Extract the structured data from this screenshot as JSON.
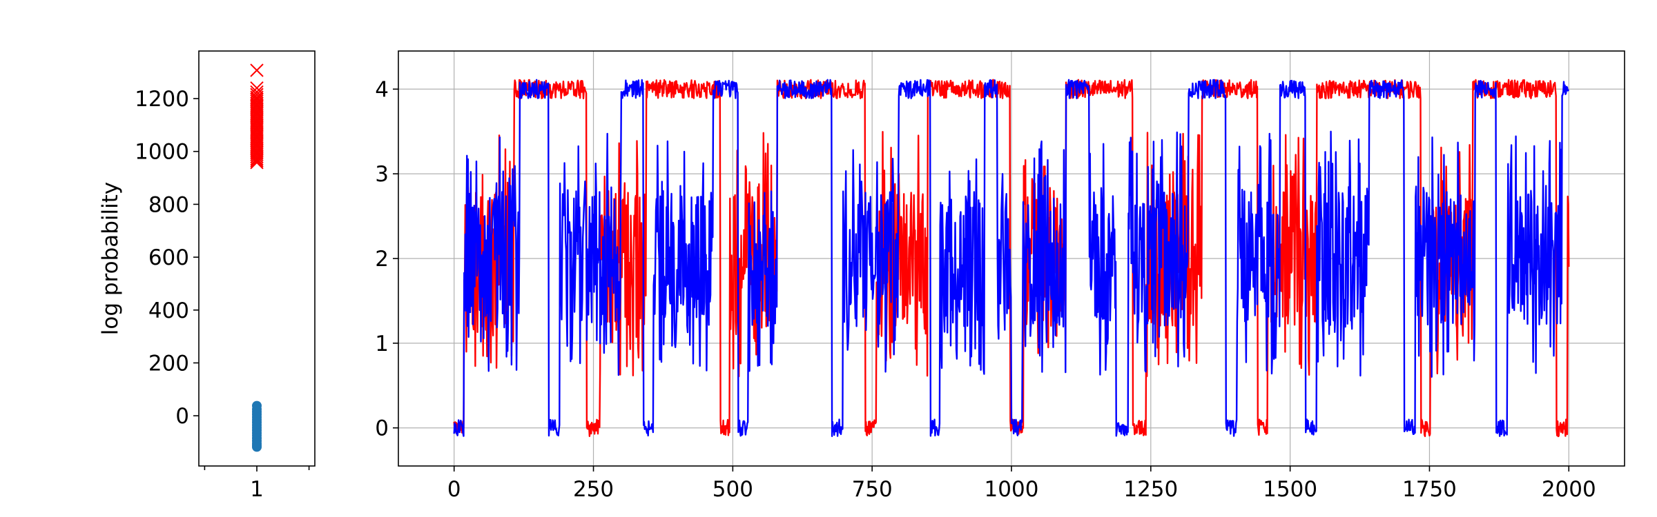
{
  "chart_data": [
    {
      "type": "scatter",
      "ylabel": "log probability",
      "xlabel": "",
      "title": "",
      "xlim": [
        0.5,
        1.5
      ],
      "ylim": [
        -190,
        1380
      ],
      "x_ticks": [
        1
      ],
      "x_tick_labels": [
        "1"
      ],
      "y_ticks": [
        0,
        200,
        400,
        600,
        800,
        1000,
        1200
      ],
      "y_tick_labels": [
        "0",
        "200",
        "400",
        "600",
        "800",
        "1000",
        "1200"
      ],
      "grid": false,
      "series": [
        {
          "marker": "x",
          "color": "#ff0000",
          "x": 1,
          "values": [
            1307,
            1240,
            1225,
            1215,
            1205,
            1198,
            1190,
            1182,
            1175,
            1168,
            1160,
            1152,
            1145,
            1138,
            1130,
            1122,
            1115,
            1108,
            1100,
            1092,
            1085,
            1078,
            1070,
            1062,
            1055,
            1048,
            1040,
            1032,
            1025,
            1018,
            1010,
            1002,
            995,
            988,
            980,
            972,
            965,
            958
          ]
        },
        {
          "marker": "o",
          "color": "#1f77b4",
          "x": 1,
          "values": [
            38,
            25,
            15,
            5,
            -5,
            -15,
            -25,
            -35,
            -45,
            -55,
            -65,
            -75,
            -85,
            -95,
            -105,
            -112,
            -118
          ]
        }
      ]
    },
    {
      "type": "line",
      "xlabel": "",
      "ylabel": "",
      "title": "",
      "xlim": [
        -100,
        2100
      ],
      "ylim": [
        -0.45,
        4.45
      ],
      "x_ticks": [
        0,
        250,
        500,
        750,
        1000,
        1250,
        1500,
        1750,
        2000
      ],
      "x_tick_labels": [
        "0",
        "250",
        "500",
        "750",
        "1000",
        "1250",
        "1500",
        "1750",
        "2000"
      ],
      "y_ticks": [
        0,
        1,
        2,
        3,
        4
      ],
      "y_tick_labels": [
        "0",
        "1",
        "2",
        "3",
        "4"
      ],
      "grid": true,
      "x_range": [
        0,
        2000
      ],
      "series": [
        {
          "color": "#ff0000",
          "segments": [
            {
              "start": 0,
              "end": 18,
              "level": 0
            },
            {
              "start": 18,
              "end": 108,
              "level": 2
            },
            {
              "start": 108,
              "end": 238,
              "level": 4
            },
            {
              "start": 238,
              "end": 262,
              "level": 0
            },
            {
              "start": 262,
              "end": 345,
              "level": 2
            },
            {
              "start": 345,
              "end": 478,
              "level": 4
            },
            {
              "start": 478,
              "end": 495,
              "level": 0
            },
            {
              "start": 495,
              "end": 580,
              "level": 2
            },
            {
              "start": 580,
              "end": 738,
              "level": 4
            },
            {
              "start": 738,
              "end": 758,
              "level": 0
            },
            {
              "start": 758,
              "end": 850,
              "level": 2
            },
            {
              "start": 850,
              "end": 998,
              "level": 4
            },
            {
              "start": 998,
              "end": 1022,
              "level": 0
            },
            {
              "start": 1022,
              "end": 1098,
              "level": 2
            },
            {
              "start": 1098,
              "end": 1218,
              "level": 4
            },
            {
              "start": 1218,
              "end": 1242,
              "level": 0
            },
            {
              "start": 1242,
              "end": 1342,
              "level": 2
            },
            {
              "start": 1342,
              "end": 1442,
              "level": 4
            },
            {
              "start": 1442,
              "end": 1460,
              "level": 0
            },
            {
              "start": 1460,
              "end": 1548,
              "level": 2
            },
            {
              "start": 1548,
              "end": 1735,
              "level": 4
            },
            {
              "start": 1735,
              "end": 1752,
              "level": 0
            },
            {
              "start": 1752,
              "end": 1828,
              "level": 2
            },
            {
              "start": 1828,
              "end": 1978,
              "level": 4
            },
            {
              "start": 1978,
              "end": 1998,
              "level": 0
            },
            {
              "start": 1998,
              "end": 2000,
              "level": 2
            }
          ]
        },
        {
          "color": "#0000ff",
          "segments": [
            {
              "start": 0,
              "end": 18,
              "level": 0
            },
            {
              "start": 18,
              "end": 118,
              "level": 2
            },
            {
              "start": 118,
              "end": 170,
              "level": 4
            },
            {
              "start": 170,
              "end": 190,
              "level": 0
            },
            {
              "start": 190,
              "end": 300,
              "level": 2
            },
            {
              "start": 300,
              "end": 340,
              "level": 4
            },
            {
              "start": 340,
              "end": 358,
              "level": 0
            },
            {
              "start": 358,
              "end": 465,
              "level": 2
            },
            {
              "start": 465,
              "end": 510,
              "level": 4
            },
            {
              "start": 510,
              "end": 528,
              "level": 0
            },
            {
              "start": 528,
              "end": 580,
              "level": 2
            },
            {
              "start": 580,
              "end": 678,
              "level": 4
            },
            {
              "start": 678,
              "end": 698,
              "level": 0
            },
            {
              "start": 698,
              "end": 798,
              "level": 2
            },
            {
              "start": 798,
              "end": 855,
              "level": 4
            },
            {
              "start": 855,
              "end": 872,
              "level": 0
            },
            {
              "start": 872,
              "end": 952,
              "level": 2
            },
            {
              "start": 952,
              "end": 975,
              "level": 4
            },
            {
              "start": 975,
              "end": 1000,
              "level": 2
            },
            {
              "start": 1000,
              "end": 1020,
              "level": 0
            },
            {
              "start": 1020,
              "end": 1098,
              "level": 2
            },
            {
              "start": 1098,
              "end": 1140,
              "level": 4
            },
            {
              "start": 1140,
              "end": 1188,
              "level": 2
            },
            {
              "start": 1188,
              "end": 1210,
              "level": 0
            },
            {
              "start": 1210,
              "end": 1318,
              "level": 2
            },
            {
              "start": 1318,
              "end": 1385,
              "level": 4
            },
            {
              "start": 1385,
              "end": 1405,
              "level": 0
            },
            {
              "start": 1405,
              "end": 1482,
              "level": 2
            },
            {
              "start": 1482,
              "end": 1528,
              "level": 4
            },
            {
              "start": 1528,
              "end": 1548,
              "level": 0
            },
            {
              "start": 1548,
              "end": 1642,
              "level": 2
            },
            {
              "start": 1642,
              "end": 1705,
              "level": 4
            },
            {
              "start": 1705,
              "end": 1725,
              "level": 0
            },
            {
              "start": 1725,
              "end": 1832,
              "level": 2
            },
            {
              "start": 1832,
              "end": 1870,
              "level": 4
            },
            {
              "start": 1870,
              "end": 1890,
              "level": 0
            },
            {
              "start": 1890,
              "end": 1988,
              "level": 2
            },
            {
              "start": 1988,
              "end": 2000,
              "level": 4
            }
          ]
        }
      ]
    }
  ]
}
